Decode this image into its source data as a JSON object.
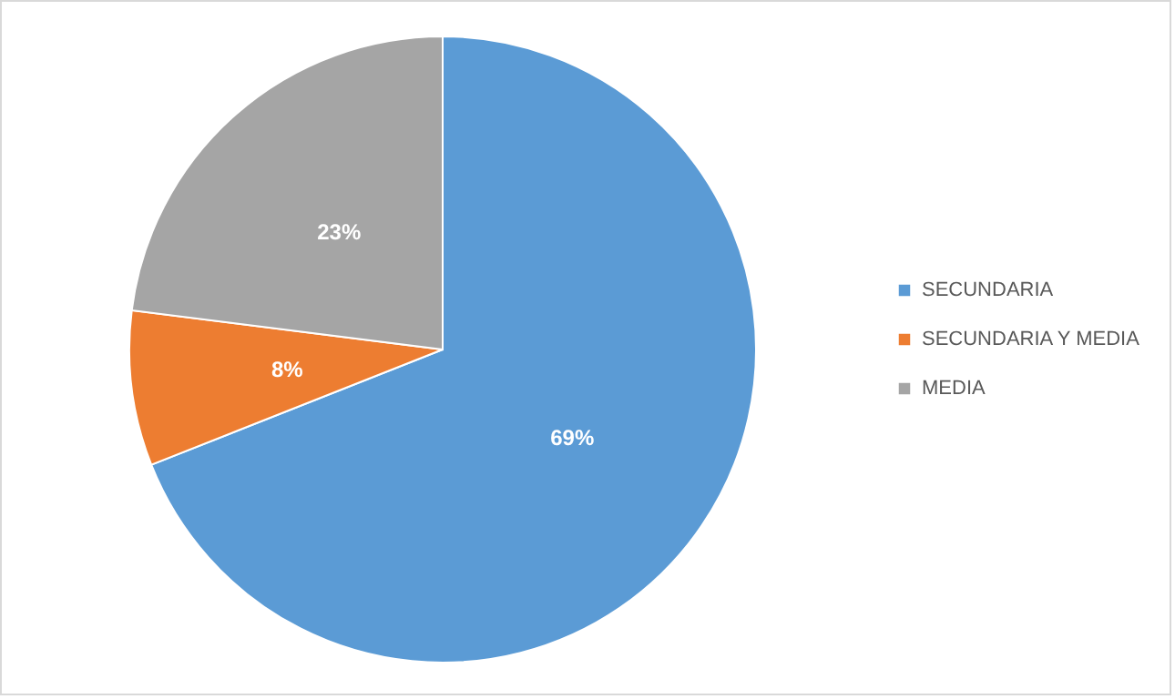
{
  "chart_data": {
    "type": "pie",
    "categories": [
      "SECUNDARIA",
      "SECUNDARIA Y MEDIA",
      "MEDIA"
    ],
    "values": [
      69,
      8,
      23
    ],
    "colors": [
      "#5b9bd5",
      "#ed7d31",
      "#a5a5a5"
    ],
    "value_labels": [
      "69%",
      "8%",
      "23%"
    ],
    "legend": "right"
  }
}
